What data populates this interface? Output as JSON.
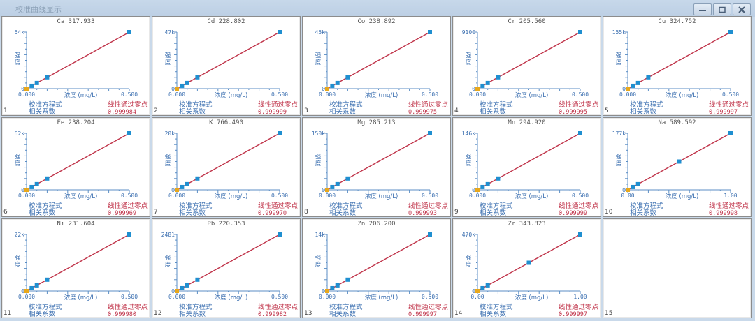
{
  "window": {
    "title": "校准曲线显示",
    "buttons": {
      "minimize": "minimize",
      "maximize": "maximize",
      "close": "close"
    }
  },
  "labels": {
    "y_axis": "强度",
    "x_axis": "浓度 (mg/L)",
    "equation": "校准方程式",
    "correlation": "相关系数",
    "fit_mode": "线性通过零点"
  },
  "colors": {
    "line": "#c0344a",
    "point": "#1f8fd0",
    "zero_point": "#e8a81c",
    "axis": "#5b8ec4",
    "label_blue": "#3b6fb0",
    "label_red": "#c0344a"
  },
  "panels": [
    {
      "index": "1",
      "title": "Ca 317.933",
      "ymax": "64k",
      "ymin": "0",
      "xmin": "0.000",
      "xmax": "0.500",
      "r": "0.999984"
    },
    {
      "index": "2",
      "title": "Cd 228.802",
      "ymax": "47k",
      "ymin": "0",
      "xmin": "0.000",
      "xmax": "0.500",
      "r": "0.999999"
    },
    {
      "index": "3",
      "title": "Co 238.892",
      "ymax": "45k",
      "ymin": "0",
      "xmin": "0.000",
      "xmax": "0.500",
      "r": "0.999975"
    },
    {
      "index": "4",
      "title": "Cr 205.560",
      "ymax": "9100",
      "ymin": "0",
      "xmin": "0.000",
      "xmax": "0.500",
      "r": "0.999995"
    },
    {
      "index": "5",
      "title": "Cu 324.752",
      "ymax": "155k",
      "ymin": "0",
      "xmin": "0.000",
      "xmax": "0.500",
      "r": "0.999997"
    },
    {
      "index": "6",
      "title": "Fe 238.204",
      "ymax": "62k",
      "ymin": "0",
      "xmin": "0.000",
      "xmax": "0.500",
      "r": "0.999969"
    },
    {
      "index": "7",
      "title": "K 766.490",
      "ymax": "20k",
      "ymin": "0",
      "xmin": "0.000",
      "xmax": "0.500",
      "r": "0.999970"
    },
    {
      "index": "8",
      "title": "Mg 285.213",
      "ymax": "150k",
      "ymin": "0",
      "xmin": "0.000",
      "xmax": "0.500",
      "r": "0.999993"
    },
    {
      "index": "9",
      "title": "Mn 294.920",
      "ymax": "146k",
      "ymin": "0",
      "xmin": "0.000",
      "xmax": "0.500",
      "r": "0.999999"
    },
    {
      "index": "10",
      "title": "Na 589.592",
      "ymax": "177k",
      "ymin": "0",
      "xmin": "0.00",
      "xmax": "1.00",
      "r": "0.999998"
    },
    {
      "index": "11",
      "title": "Ni 231.604",
      "ymax": "22k",
      "ymin": "0",
      "xmin": "0.000",
      "xmax": "0.500",
      "r": "0.999980"
    },
    {
      "index": "12",
      "title": "Pb 220.353",
      "ymax": "2481",
      "ymin": "0",
      "xmin": "0.000",
      "xmax": "0.500",
      "r": "0.999982"
    },
    {
      "index": "13",
      "title": "Zn 206.200",
      "ymax": "14k",
      "ymin": "0",
      "xmin": "0.000",
      "xmax": "0.500",
      "r": "0.999997"
    },
    {
      "index": "14",
      "title": "Zr 343.823",
      "ymax": "470k",
      "ymin": "0",
      "xmin": "0.00",
      "xmax": "1.00",
      "r": "0.999997"
    },
    {
      "index": "15",
      "title": "",
      "empty": true
    }
  ],
  "chart_data": [
    {
      "type": "scatter",
      "title": "Ca 317.933",
      "xlabel": "浓度 (mg/L)",
      "ylabel": "强度",
      "xlim": [
        0,
        0.5
      ],
      "ylim": [
        0,
        64000
      ],
      "x": [
        0,
        0.025,
        0.05,
        0.1,
        0.5
      ],
      "y": [
        0,
        3200,
        6400,
        12800,
        64000
      ],
      "fit": "线性通过零点",
      "r": 0.999984
    },
    {
      "type": "scatter",
      "title": "Cd 228.802",
      "xlabel": "浓度 (mg/L)",
      "ylabel": "强度",
      "xlim": [
        0,
        0.5
      ],
      "ylim": [
        0,
        47000
      ],
      "x": [
        0,
        0.025,
        0.05,
        0.1,
        0.5
      ],
      "y": [
        0,
        2350,
        4700,
        9400,
        47000
      ],
      "fit": "线性通过零点",
      "r": 0.999999
    },
    {
      "type": "scatter",
      "title": "Co 238.892",
      "xlabel": "浓度 (mg/L)",
      "ylabel": "强度",
      "xlim": [
        0,
        0.5
      ],
      "ylim": [
        0,
        45000
      ],
      "x": [
        0,
        0.025,
        0.05,
        0.1,
        0.5
      ],
      "y": [
        0,
        2250,
        4500,
        9000,
        45000
      ],
      "fit": "线性通过零点",
      "r": 0.999975
    },
    {
      "type": "scatter",
      "title": "Cr 205.560",
      "xlabel": "浓度 (mg/L)",
      "ylabel": "强度",
      "xlim": [
        0,
        0.5
      ],
      "ylim": [
        0,
        9100
      ],
      "x": [
        0,
        0.025,
        0.05,
        0.1,
        0.5
      ],
      "y": [
        0,
        455,
        910,
        1820,
        9100
      ],
      "fit": "线性通过零点",
      "r": 0.999995
    },
    {
      "type": "scatter",
      "title": "Cu 324.752",
      "xlabel": "浓度 (mg/L)",
      "ylabel": "强度",
      "xlim": [
        0,
        0.5
      ],
      "ylim": [
        0,
        155000
      ],
      "x": [
        0,
        0.025,
        0.05,
        0.1,
        0.5
      ],
      "y": [
        0,
        7750,
        15500,
        31000,
        155000
      ],
      "fit": "线性通过零点",
      "r": 0.999997
    },
    {
      "type": "scatter",
      "title": "Fe 238.204",
      "xlabel": "浓度 (mg/L)",
      "ylabel": "强度",
      "xlim": [
        0,
        0.5
      ],
      "ylim": [
        0,
        62000
      ],
      "x": [
        0,
        0.025,
        0.05,
        0.1,
        0.5
      ],
      "y": [
        0,
        3100,
        6200,
        12400,
        62000
      ],
      "fit": "线性通过零点",
      "r": 0.999969
    },
    {
      "type": "scatter",
      "title": "K 766.490",
      "xlabel": "浓度 (mg/L)",
      "ylabel": "强度",
      "xlim": [
        0,
        0.5
      ],
      "ylim": [
        0,
        20000
      ],
      "x": [
        0,
        0.025,
        0.05,
        0.1,
        0.5
      ],
      "y": [
        0,
        1000,
        2000,
        4000,
        20000
      ],
      "fit": "线性通过零点",
      "r": 0.99997
    },
    {
      "type": "scatter",
      "title": "Mg 285.213",
      "xlabel": "浓度 (mg/L)",
      "ylabel": "强度",
      "xlim": [
        0,
        0.5
      ],
      "ylim": [
        0,
        150000
      ],
      "x": [
        0,
        0.025,
        0.05,
        0.1,
        0.5
      ],
      "y": [
        0,
        7500,
        15000,
        30000,
        150000
      ],
      "fit": "线性通过零点",
      "r": 0.999993
    },
    {
      "type": "scatter",
      "title": "Mn 294.920",
      "xlabel": "浓度 (mg/L)",
      "ylabel": "强度",
      "xlim": [
        0,
        0.5
      ],
      "ylim": [
        0,
        146000
      ],
      "x": [
        0,
        0.025,
        0.05,
        0.1,
        0.5
      ],
      "y": [
        0,
        7300,
        14600,
        29200,
        146000
      ],
      "fit": "线性通过零点",
      "r": 0.999999
    },
    {
      "type": "scatter",
      "title": "Na 589.592",
      "xlabel": "浓度 (mg/L)",
      "ylabel": "强度",
      "xlim": [
        0,
        1.0
      ],
      "ylim": [
        0,
        177000
      ],
      "x": [
        0,
        0.05,
        0.1,
        0.5,
        1.0
      ],
      "y": [
        0,
        8850,
        17700,
        88500,
        177000
      ],
      "fit": "线性通过零点",
      "r": 0.999998
    },
    {
      "type": "scatter",
      "title": "Ni 231.604",
      "xlabel": "浓度 (mg/L)",
      "ylabel": "强度",
      "xlim": [
        0,
        0.5
      ],
      "ylim": [
        0,
        22000
      ],
      "x": [
        0,
        0.025,
        0.05,
        0.1,
        0.5
      ],
      "y": [
        0,
        1100,
        2200,
        4400,
        22000
      ],
      "fit": "线性通过零点",
      "r": 0.99998
    },
    {
      "type": "scatter",
      "title": "Pb 220.353",
      "xlabel": "浓度 (mg/L)",
      "ylabel": "强度",
      "xlim": [
        0,
        0.5
      ],
      "ylim": [
        0,
        2481
      ],
      "x": [
        0,
        0.025,
        0.05,
        0.1,
        0.5
      ],
      "y": [
        0,
        124,
        248,
        496,
        2481
      ],
      "fit": "线性通过零点",
      "r": 0.999982
    },
    {
      "type": "scatter",
      "title": "Zn 206.200",
      "xlabel": "浓度 (mg/L)",
      "ylabel": "强度",
      "xlim": [
        0,
        0.5
      ],
      "ylim": [
        0,
        14000
      ],
      "x": [
        0,
        0.025,
        0.05,
        0.1,
        0.5
      ],
      "y": [
        0,
        700,
        1400,
        2800,
        14000
      ],
      "fit": "线性通过零点",
      "r": 0.999997
    },
    {
      "type": "scatter",
      "title": "Zr 343.823",
      "xlabel": "浓度 (mg/L)",
      "ylabel": "强度",
      "xlim": [
        0,
        1.0
      ],
      "ylim": [
        0,
        470000
      ],
      "x": [
        0,
        0.05,
        0.1,
        0.5,
        1.0
      ],
      "y": [
        0,
        23500,
        47000,
        235000,
        470000
      ],
      "fit": "线性通过零点",
      "r": 0.999997
    }
  ]
}
